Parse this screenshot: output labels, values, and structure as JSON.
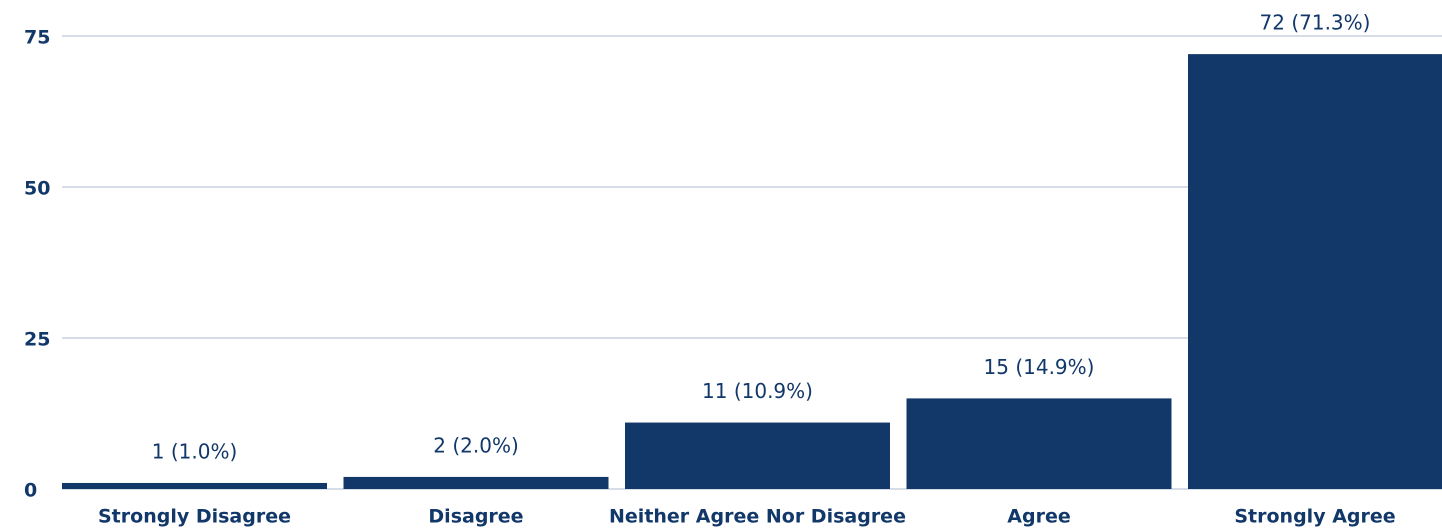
{
  "chart_data": {
    "type": "bar",
    "categories": [
      "Strongly Disagree",
      "Disagree",
      "Neither Agree Nor Disagree",
      "Agree",
      "Strongly Agree"
    ],
    "values": [
      1,
      2,
      11,
      15,
      72
    ],
    "value_labels": [
      "1 (1.0%)",
      "2 (2.0%)",
      "11 (10.9%)",
      "15 (14.9%)",
      "72 (71.3%)"
    ],
    "color": "#12386a",
    "ylim": [
      0,
      75
    ],
    "yticks": [
      0,
      25,
      50,
      75
    ],
    "grid": true
  }
}
